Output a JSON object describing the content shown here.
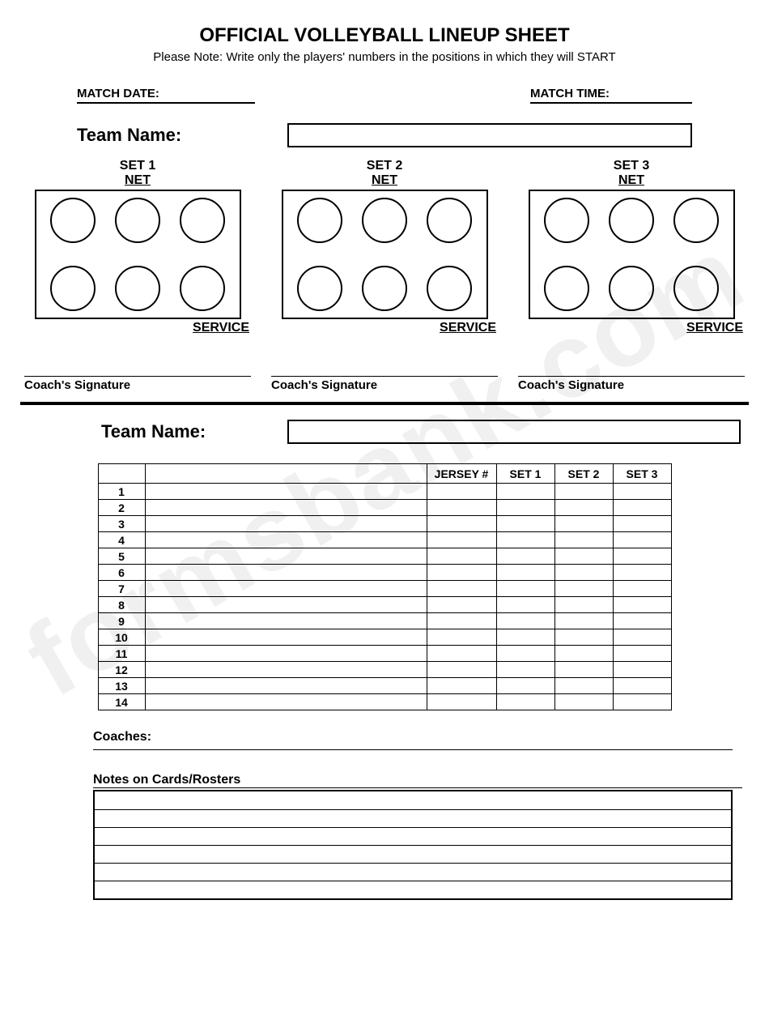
{
  "title": "OFFICIAL VOLLEYBALL LINEUP SHEET",
  "subtitle": "Please Note:  Write only the players' numbers in the positions in which they will START",
  "match_date_label": "MATCH DATE:",
  "match_time_label": "MATCH TIME:",
  "team_name_label": "Team Name:",
  "sets": [
    {
      "label": "SET 1",
      "net": "NET",
      "service": "SERVICE"
    },
    {
      "label": "SET 2",
      "net": "NET",
      "service": "SERVICE"
    },
    {
      "label": "SET 3",
      "net": "NET",
      "service": "SERVICE"
    }
  ],
  "coach_signature_label": "Coach's Signature",
  "roster": {
    "headers": {
      "num": "",
      "name": "",
      "jersey": "JERSEY #",
      "set1": "SET 1",
      "set2": "SET 2",
      "set3": "SET 3"
    },
    "rows": [
      "1",
      "2",
      "3",
      "4",
      "5",
      "6",
      "7",
      "8",
      "9",
      "10",
      "11",
      "12",
      "13",
      "14"
    ]
  },
  "coaches_label": "Coaches:",
  "notes_label": "Notes on Cards/Rosters",
  "notes_lines": 6,
  "watermark": "formsbank.com",
  "colors": {
    "text": "#000000",
    "bg": "#ffffff",
    "watermark": "rgba(200,200,200,0.28)"
  }
}
